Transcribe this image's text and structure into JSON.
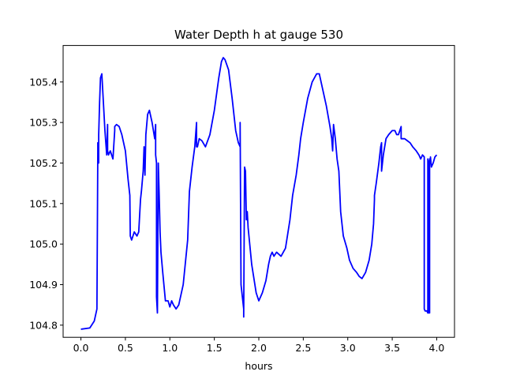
{
  "chart_data": {
    "type": "line",
    "title": "Water Depth h at gauge 530",
    "xlabel": "hours",
    "ylabel": "",
    "xlim": [
      -0.2,
      4.2
    ],
    "ylim": [
      104.77,
      105.49
    ],
    "xticks": [
      0.0,
      0.5,
      1.0,
      1.5,
      2.0,
      2.5,
      3.0,
      3.5,
      4.0
    ],
    "xtick_labels": [
      "0.0",
      "0.5",
      "1.0",
      "1.5",
      "2.0",
      "2.5",
      "3.0",
      "3.5",
      "4.0"
    ],
    "yticks": [
      104.8,
      104.9,
      105.0,
      105.1,
      105.2,
      105.3,
      105.4
    ],
    "ytick_labels": [
      "104.8",
      "104.9",
      "105.0",
      "105.1",
      "105.2",
      "105.3",
      "105.4"
    ],
    "grid": false,
    "series": [
      {
        "color": "#0000ff",
        "x": [
          0.0,
          0.1,
          0.15,
          0.18,
          0.19,
          0.19,
          0.2,
          0.2,
          0.21,
          0.22,
          0.235,
          0.25,
          0.27,
          0.29,
          0.3,
          0.3,
          0.31,
          0.33,
          0.36,
          0.38,
          0.38,
          0.4,
          0.43,
          0.46,
          0.5,
          0.53,
          0.55,
          0.555,
          0.57,
          0.6,
          0.63,
          0.65,
          0.67,
          0.68,
          0.7,
          0.71,
          0.72,
          0.73,
          0.75,
          0.77,
          0.8,
          0.83,
          0.84,
          0.84,
          0.85,
          0.85,
          0.86,
          0.87,
          0.88,
          0.89,
          0.9,
          0.92,
          0.95,
          0.98,
          1.0,
          1.02,
          1.04,
          1.07,
          1.1,
          1.15,
          1.2,
          1.22,
          1.25,
          1.28,
          1.3,
          1.3,
          1.31,
          1.33,
          1.36,
          1.4,
          1.45,
          1.5,
          1.55,
          1.58,
          1.6,
          1.62,
          1.66,
          1.7,
          1.74,
          1.77,
          1.79,
          1.79,
          1.8,
          1.82,
          1.83,
          1.83,
          1.84,
          1.85,
          1.86,
          1.87,
          1.88,
          1.92,
          1.97,
          2.0,
          2.04,
          2.08,
          2.11,
          2.13,
          2.15,
          2.17,
          2.2,
          2.25,
          2.3,
          2.35,
          2.38,
          2.42,
          2.45,
          2.47,
          2.5,
          2.55,
          2.6,
          2.65,
          2.68,
          2.72,
          2.76,
          2.8,
          2.82,
          2.83,
          2.84,
          2.86,
          2.88,
          2.9,
          2.92,
          2.95,
          2.99,
          3.02,
          3.06,
          3.1,
          3.13,
          3.16,
          3.2,
          3.24,
          3.27,
          3.29,
          3.3,
          3.3,
          3.32,
          3.35,
          3.37,
          3.38,
          3.38,
          3.4,
          3.43,
          3.46,
          3.5,
          3.53,
          3.55,
          3.57,
          3.6,
          3.6,
          3.62,
          3.64,
          3.67,
          3.7,
          3.73,
          3.77,
          3.8,
          3.82,
          3.84,
          3.86,
          3.86,
          3.87,
          3.89,
          3.9,
          3.9,
          3.91,
          3.91,
          3.92,
          3.92,
          3.93,
          3.93,
          3.94,
          3.96,
          3.98,
          4.0
        ],
        "y": [
          104.79,
          104.793,
          104.81,
          104.84,
          105.23,
          105.25,
          105.2,
          105.27,
          105.35,
          105.41,
          105.42,
          105.36,
          105.28,
          105.22,
          105.295,
          105.23,
          105.22,
          105.23,
          105.21,
          105.28,
          105.29,
          105.295,
          105.29,
          105.27,
          105.23,
          105.16,
          105.12,
          105.02,
          105.01,
          105.03,
          105.02,
          105.03,
          105.11,
          105.13,
          105.18,
          105.24,
          105.17,
          105.27,
          105.32,
          105.33,
          105.3,
          105.26,
          105.295,
          105.22,
          105.2,
          104.87,
          104.83,
          105.2,
          105.12,
          105.03,
          104.98,
          104.93,
          104.86,
          104.86,
          104.845,
          104.86,
          104.85,
          104.84,
          104.85,
          104.9,
          105.01,
          105.13,
          105.19,
          105.24,
          105.3,
          105.24,
          105.24,
          105.26,
          105.255,
          105.24,
          105.27,
          105.33,
          105.41,
          105.45,
          105.46,
          105.455,
          105.43,
          105.36,
          105.28,
          105.25,
          105.24,
          105.3,
          104.9,
          104.86,
          104.84,
          104.82,
          105.19,
          105.18,
          105.06,
          105.08,
          105.04,
          104.95,
          104.88,
          104.86,
          104.88,
          104.91,
          104.95,
          104.97,
          104.98,
          104.97,
          104.98,
          104.97,
          104.99,
          105.06,
          105.12,
          105.17,
          105.22,
          105.26,
          105.3,
          105.36,
          105.4,
          105.42,
          105.42,
          105.38,
          105.34,
          105.29,
          105.26,
          105.23,
          105.295,
          105.26,
          105.21,
          105.18,
          105.08,
          105.02,
          104.99,
          104.96,
          104.94,
          104.93,
          104.92,
          104.915,
          104.93,
          104.96,
          105.0,
          105.05,
          105.11,
          105.12,
          105.15,
          105.2,
          105.24,
          105.25,
          105.18,
          105.22,
          105.26,
          105.27,
          105.28,
          105.28,
          105.27,
          105.27,
          105.29,
          105.26,
          105.26,
          105.26,
          105.255,
          105.25,
          105.24,
          105.23,
          105.22,
          105.21,
          105.22,
          105.215,
          104.84,
          104.835,
          104.835,
          104.83,
          105.21,
          104.83,
          105.205,
          104.83,
          105.21,
          105.21,
          105.215,
          105.19,
          105.2,
          105.215,
          105.22
        ]
      }
    ]
  }
}
